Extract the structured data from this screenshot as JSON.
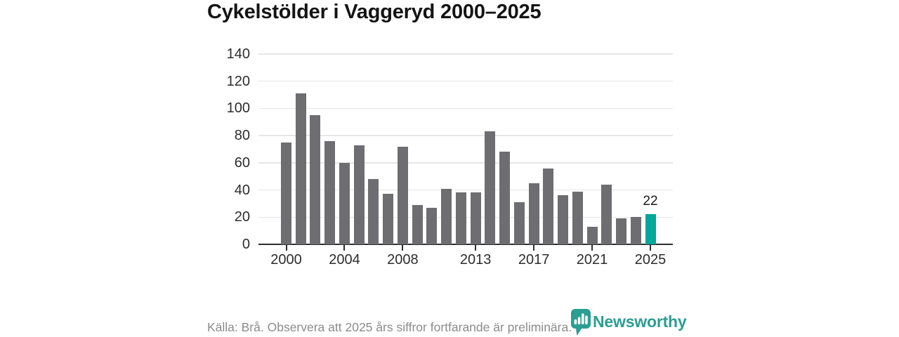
{
  "title": "Cykelstölder i Vaggeryd 2000–2025",
  "footer": {
    "source_note": "Källa: Brå. Observera att 2025 års siffror fortfarande är preliminära.",
    "brand": "Newsworthy",
    "brand_color": "#2b9e92"
  },
  "chart_data": {
    "type": "bar",
    "title": "Cykelstölder i Vaggeryd 2000–2025",
    "categories": [
      2000,
      2001,
      2002,
      2003,
      2004,
      2005,
      2006,
      2007,
      2008,
      2009,
      2010,
      2011,
      2012,
      2013,
      2014,
      2015,
      2016,
      2017,
      2018,
      2019,
      2020,
      2021,
      2022,
      2023,
      2024,
      2025
    ],
    "values": [
      75,
      111,
      95,
      76,
      60,
      73,
      48,
      37,
      72,
      29,
      27,
      41,
      38,
      38,
      83,
      68,
      31,
      45,
      56,
      36,
      39,
      13,
      44,
      19,
      20,
      22
    ],
    "xlabel": "",
    "ylabel": "",
    "ylim": [
      0,
      140
    ],
    "y_ticks": [
      0,
      20,
      40,
      60,
      80,
      100,
      120,
      140
    ],
    "x_tick_labels": [
      "2000",
      "2004",
      "2008",
      "2013",
      "2017",
      "2021",
      "2025"
    ],
    "grid": true,
    "legend": "none",
    "highlight_bar": {
      "category": 2025,
      "label": "22"
    },
    "colors": {
      "bar": "#6e6d71",
      "highlight": "#00a79b",
      "gridline": "#e6e6e6",
      "axis": "#2f2f2f"
    }
  }
}
